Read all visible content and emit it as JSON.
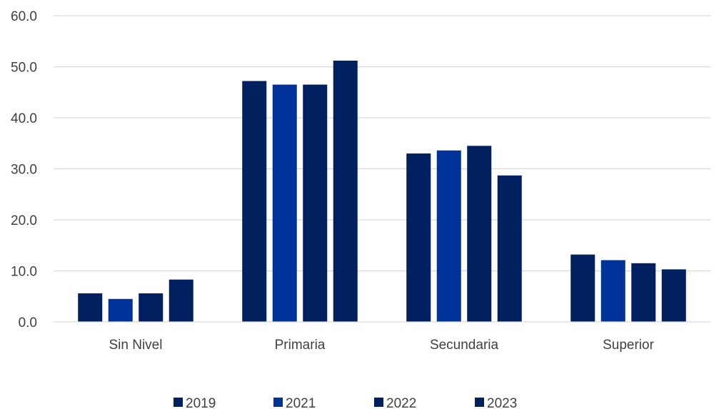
{
  "chart_data": {
    "type": "bar",
    "categories": [
      "Sin Nivel",
      "Primaria",
      "Secundaria",
      "Superior"
    ],
    "series": [
      {
        "name": "2019",
        "values": [
          5.6,
          47.2,
          33.0,
          13.2
        ],
        "color": "#002060"
      },
      {
        "name": "2021",
        "values": [
          4.5,
          46.5,
          33.6,
          12.1
        ],
        "color": "#003399"
      },
      {
        "name": "2022",
        "values": [
          5.6,
          46.5,
          34.5,
          11.5
        ],
        "color": "#002060"
      },
      {
        "name": "2023",
        "values": [
          8.3,
          51.2,
          28.7,
          10.3
        ],
        "color": "#002060"
      }
    ],
    "yticks": [
      "0.0",
      "10.0",
      "20.0",
      "30.0",
      "40.0",
      "50.0",
      "60.0"
    ],
    "ylim": [
      0,
      60
    ],
    "grid": true,
    "legend_position": "bottom",
    "title": "",
    "xlabel": "",
    "ylabel": ""
  }
}
